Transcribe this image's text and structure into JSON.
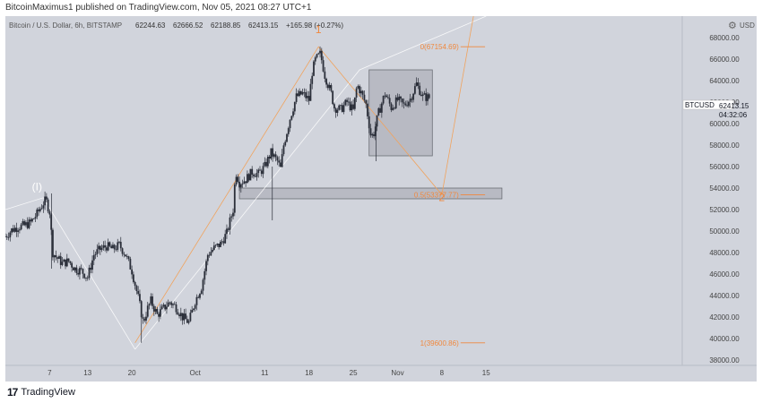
{
  "header": {
    "publisher_text": "BitcoinMaximus1 published on TradingView.com, Nov 05, 2021 08:27 UTC+1"
  },
  "footer": {
    "logo": "tradingview-logo-icon",
    "brand": "TradingView"
  },
  "chart_data": {
    "type": "candlestick",
    "title": "Bitcoin / U.S. Dollar, 6h, BITSTAMP",
    "ohlc": {
      "o": "62244.63",
      "h": "62666.52",
      "l": "62188.85",
      "c": "62413.15",
      "change": "+165.98 (+0.27%)"
    },
    "currency_label": "USD",
    "symbol": "BTCUSD",
    "last_price": "62413.15",
    "countdown": "04:32:06",
    "ylim": [
      37500,
      70000
    ],
    "y_ticks": [
      38000,
      40000,
      42000,
      44000,
      46000,
      48000,
      50000,
      52000,
      54000,
      56000,
      58000,
      60000,
      62000,
      64000,
      66000,
      68000
    ],
    "y_tick_labels": [
      "38000.00",
      "40000.00",
      "42000.00",
      "44000.00",
      "46000.00",
      "48000.00",
      "50000.00",
      "52000.00",
      "54000.00",
      "56000.00",
      "58000.00",
      "60000.00",
      "62000.00",
      "64000.00",
      "66000.00",
      "68000.00"
    ],
    "xlim": [
      0,
      107
    ],
    "x_ticks": [
      {
        "x": 7,
        "label": "7"
      },
      {
        "x": 13,
        "label": "13"
      },
      {
        "x": 20,
        "label": "20"
      },
      {
        "x": 30,
        "label": "Oct"
      },
      {
        "x": 41,
        "label": "11"
      },
      {
        "x": 48,
        "label": "18"
      },
      {
        "x": 55,
        "label": "25"
      },
      {
        "x": 62,
        "label": "Nov"
      },
      {
        "x": 69,
        "label": "8"
      },
      {
        "x": 76,
        "label": "15"
      }
    ],
    "price_path": [
      [
        0,
        49500
      ],
      [
        1,
        50100
      ],
      [
        2,
        50400
      ],
      [
        3,
        50500
      ],
      [
        4,
        50800
      ],
      [
        5,
        51600
      ],
      [
        6,
        52600
      ],
      [
        6.4,
        52900
      ],
      [
        7,
        51800
      ],
      [
        7.5,
        48000
      ],
      [
        8,
        47600
      ],
      [
        9,
        47000
      ],
      [
        10,
        47200
      ],
      [
        11,
        46500
      ],
      [
        12,
        46300
      ],
      [
        13,
        45700
      ],
      [
        14,
        47800
      ],
      [
        15,
        48300
      ],
      [
        16,
        48600
      ],
      [
        17,
        48300
      ],
      [
        18,
        48700
      ],
      [
        19,
        47800
      ],
      [
        20,
        46300
      ],
      [
        21,
        43800
      ],
      [
        21.8,
        41500
      ],
      [
        22.5,
        42800
      ],
      [
        23,
        43500
      ],
      [
        24,
        42200
      ],
      [
        25,
        42800
      ],
      [
        26,
        43400
      ],
      [
        27,
        42900
      ],
      [
        28,
        42000
      ],
      [
        29,
        41500
      ],
      [
        30,
        43500
      ],
      [
        31,
        44800
      ],
      [
        32,
        47800
      ],
      [
        33,
        48400
      ],
      [
        34,
        48800
      ],
      [
        35,
        49800
      ],
      [
        36,
        52000
      ],
      [
        36.4,
        55600
      ],
      [
        37,
        54500
      ],
      [
        38,
        54800
      ],
      [
        39,
        55500
      ],
      [
        40,
        55300
      ],
      [
        41,
        56000
      ],
      [
        42,
        57300
      ],
      [
        43,
        56500
      ],
      [
        43.5,
        55800
      ],
      [
        44,
        58000
      ],
      [
        45,
        60500
      ],
      [
        46,
        62500
      ],
      [
        47,
        62800
      ],
      [
        48,
        62200
      ],
      [
        48.5,
        64800
      ],
      [
        49,
        65900
      ],
      [
        49.8,
        66500
      ],
      [
        50.5,
        64500
      ],
      [
        51.5,
        62800
      ],
      [
        52,
        61500
      ],
      [
        53,
        61300
      ],
      [
        54,
        62000
      ],
      [
        55,
        61200
      ],
      [
        55.6,
        63600
      ],
      [
        56.3,
        62800
      ],
      [
        57,
        61800
      ],
      [
        57.8,
        58800
      ],
      [
        58.2,
        59000
      ],
      [
        59,
        61000
      ],
      [
        60,
        62800
      ],
      [
        61,
        61500
      ],
      [
        62,
        62200
      ],
      [
        63,
        61700
      ],
      [
        64,
        62300
      ],
      [
        65,
        63700
      ],
      [
        66,
        62500
      ],
      [
        67,
        62413
      ]
    ],
    "annotations": [
      {
        "text": "(I)",
        "x": 5,
        "y": 53800,
        "color": "#ffffff"
      },
      {
        "text": "1",
        "x": 49.5,
        "y": 68400,
        "color": "#f0883e"
      },
      {
        "text": "2",
        "x": 69,
        "y": 52800,
        "color": "#f0883e"
      }
    ],
    "fib_levels": [
      {
        "label": "0(67154.69)",
        "y": 67154.69,
        "x1": 67,
        "x2": 73
      },
      {
        "label": "0.5(53377.77)",
        "y": 53377.77,
        "x1": 67,
        "x2": 73
      },
      {
        "label": "1(39600.86)",
        "y": 39600.86,
        "x1": 67,
        "x2": 73
      }
    ],
    "fib_trend_points": [
      [
        20.5,
        39600
      ],
      [
        49.5,
        67150
      ],
      [
        69,
        53380
      ],
      [
        74,
        70000
      ]
    ],
    "white_wave_lines": [
      [
        [
          0,
          52000
        ],
        [
          6,
          53100
        ],
        [
          20.5,
          39000
        ]
      ],
      [
        [
          20.5,
          39000
        ],
        [
          56,
          65000
        ],
        [
          76,
          70000
        ]
      ]
    ],
    "rectangles": [
      {
        "x1": 57.5,
        "x2": 67.5,
        "y1": 57000,
        "y2": 65000
      },
      {
        "x1": 37,
        "x2": 78.5,
        "y1": 53000,
        "y2": 54000
      }
    ]
  }
}
